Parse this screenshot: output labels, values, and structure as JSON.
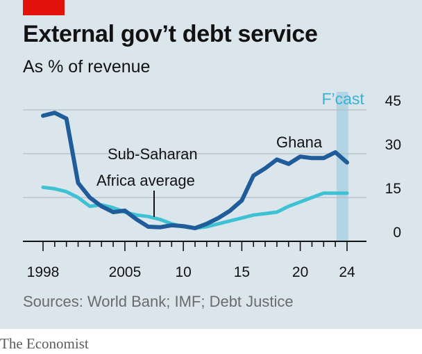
{
  "brand": {
    "accent_color": "#e3120b",
    "background_color": "#dbe5ec",
    "publisher": "The Economist"
  },
  "chart_data": {
    "type": "line",
    "title": "External gov’t debt service",
    "subtitle": "As % of revenue",
    "source": "Sources: World Bank; IMF; Debt Justice",
    "x_range": [
      1998,
      2024
    ],
    "x_ticks": [
      {
        "value": 1998,
        "label": "1998"
      },
      {
        "value": 2005,
        "label": "2005"
      },
      {
        "value": 2010,
        "label": "10"
      },
      {
        "value": 2015,
        "label": "15"
      },
      {
        "value": 2020,
        "label": "20"
      },
      {
        "value": 2024,
        "label": "24"
      }
    ],
    "y_range": [
      0,
      45
    ],
    "y_ticks": [
      0,
      15,
      30,
      45
    ],
    "y_axis_side": "right",
    "grid": "horizontal",
    "forecast": {
      "label": "F’cast",
      "from": 2023.1,
      "to": 2024.1,
      "color": "#b3d4e3"
    },
    "series": [
      {
        "name": "Ghana",
        "color": "#1f5c99",
        "x": [
          1998,
          1999,
          2000,
          2001,
          2002,
          2003,
          2004,
          2005,
          2006,
          2007,
          2008,
          2009,
          2010,
          2011,
          2012,
          2013,
          2014,
          2015,
          2016,
          2017,
          2018,
          2019,
          2020,
          2021,
          2022,
          2023,
          2024
        ],
        "values": [
          43,
          44,
          42,
          20,
          15,
          12,
          10,
          10.5,
          7.5,
          5,
          4.8,
          5.5,
          5.2,
          4.5,
          6,
          8,
          10.5,
          14,
          22.5,
          25,
          28,
          26.5,
          29,
          28.5,
          28.5,
          30.5,
          27
        ]
      },
      {
        "name": "Sub-Saharan Africa average",
        "color": "#3ec1d3",
        "x": [
          1998,
          1999,
          2000,
          2001,
          2002,
          2003,
          2004,
          2005,
          2006,
          2007,
          2008,
          2009,
          2010,
          2011,
          2012,
          2013,
          2014,
          2015,
          2016,
          2017,
          2018,
          2019,
          2020,
          2021,
          2022,
          2023,
          2024
        ],
        "values": [
          18.5,
          18,
          17,
          15,
          12,
          12.5,
          11.5,
          10,
          9,
          8.5,
          7.5,
          6,
          5,
          4.5,
          5,
          6,
          7,
          8,
          9,
          9.5,
          10,
          12,
          13.5,
          15,
          16.5,
          16.5,
          16.5
        ]
      }
    ],
    "annotations": {
      "ghana": "Ghana",
      "ssa_line1": "Sub-Saharan",
      "ssa_line2": "Africa average"
    }
  }
}
